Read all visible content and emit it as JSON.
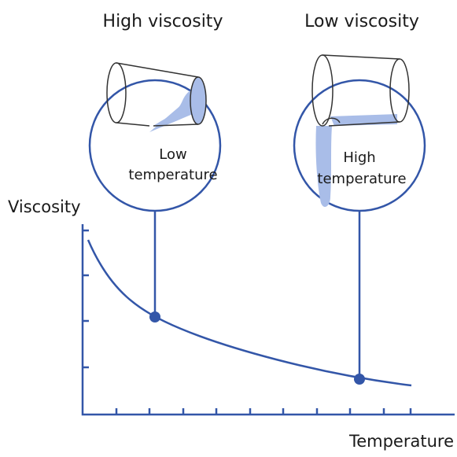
{
  "axes": {
    "y_label": "Viscosity",
    "x_label": "Temperature"
  },
  "callouts": [
    {
      "title": "High viscosity",
      "label_lines": [
        "Low",
        "temperature"
      ]
    },
    {
      "title": "Low viscosity",
      "label_lines": [
        "High",
        "temperature"
      ]
    }
  ]
}
